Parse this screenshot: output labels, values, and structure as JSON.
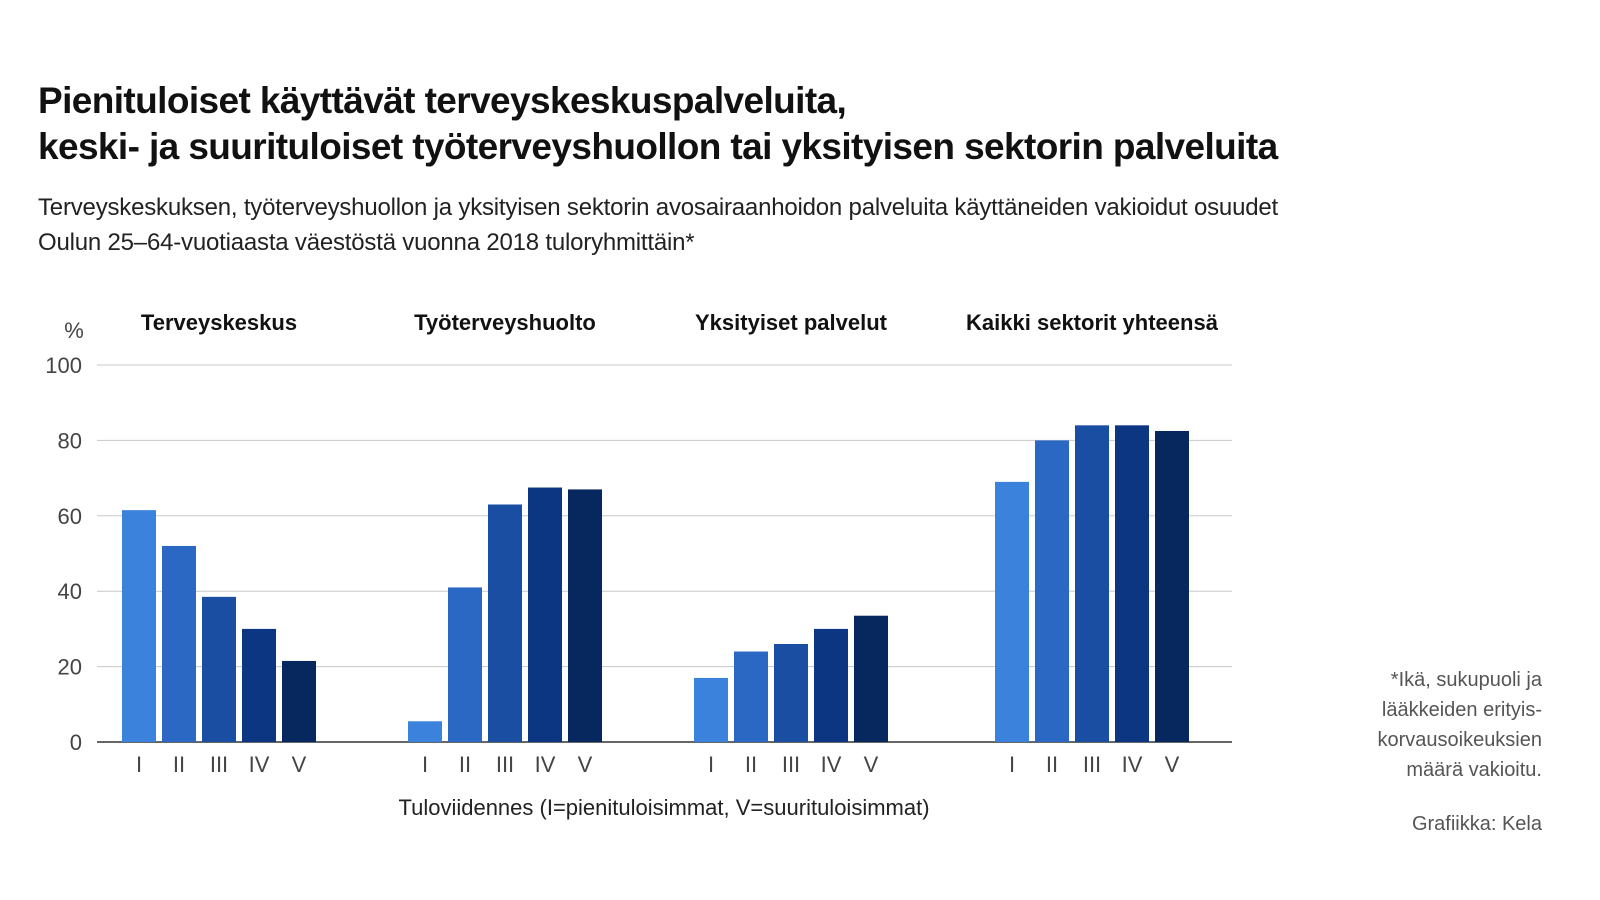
{
  "header": {
    "title_lines": [
      "Pienituloiset käyttävät terveyskeskuspalveluita,",
      "keski- ja suurituloiset työterveyshuollon tai yksityisen sektorin palveluita"
    ],
    "subtitle_lines": [
      "Terveyskeskuksen, työterveyshuollon ja yksityisen sektorin avosairaanhoidon palveluita käyttäneiden vakioidut osuudet",
      "Oulun 25–64-vuotiaasta väestöstä vuonna 2018 tuloryhmittäin*"
    ]
  },
  "footnote": {
    "lines": [
      "*Ikä, sukupuoli ja",
      "lääkkeiden erityis-",
      "korvausoikeuksien",
      "määrä vakioitu."
    ]
  },
  "credit": "Grafiikka: Kela",
  "chart_data": {
    "type": "bar",
    "title": "Pienituloiset käyttävät terveyskeskuspalveluita, keski- ja suurituloiset työterveyshuollon tai yksityisen sektorin palveluita",
    "ylabel": "%",
    "xlabel": "Tuloviidennes (I=pienituloisimmat, V=suurituloisimmat)",
    "ylim": [
      0,
      100
    ],
    "yticks": [
      0,
      20,
      40,
      60,
      80,
      100
    ],
    "grid": true,
    "categories": [
      "I",
      "II",
      "III",
      "IV",
      "V"
    ],
    "bar_colors": [
      "#3b82dc",
      "#2a68c4",
      "#1a4ea2",
      "#0c3682",
      "#06285e"
    ],
    "groups": [
      {
        "name": "Terveyskeskus",
        "values": [
          61.5,
          52,
          38.5,
          30,
          21.5
        ]
      },
      {
        "name": "Työterveyshuolto",
        "values": [
          5.5,
          41,
          63,
          67.5,
          67
        ]
      },
      {
        "name": "Yksityiset palvelut",
        "values": [
          17,
          24,
          26,
          30,
          33.5
        ]
      },
      {
        "name": "Kaikki sektorit yhteensä",
        "values": [
          69,
          80,
          84,
          84,
          82.5
        ]
      }
    ]
  }
}
